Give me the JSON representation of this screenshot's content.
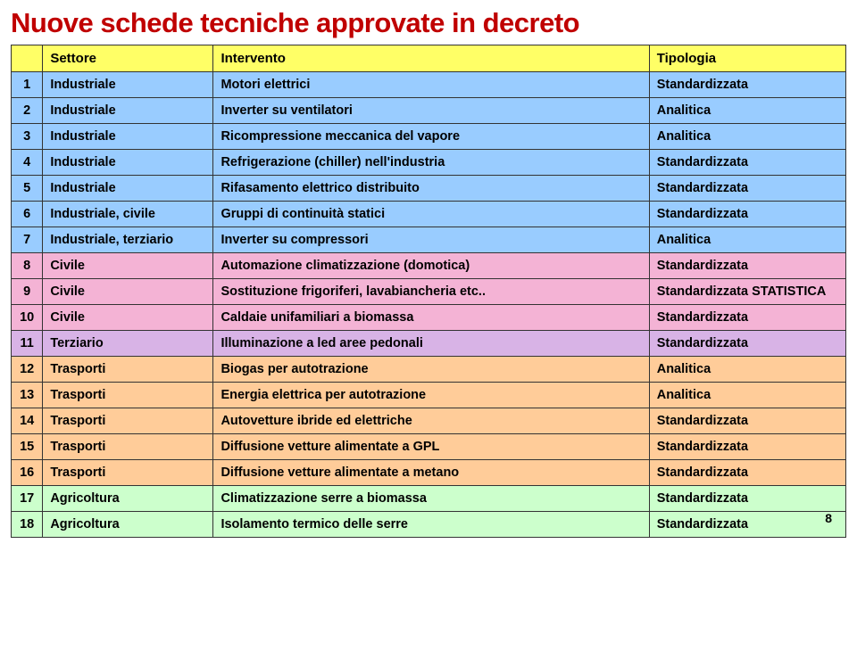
{
  "title": {
    "text": "Nuove schede tecniche approvate in decreto",
    "color": "#c00000"
  },
  "page_number": "8",
  "header": {
    "bg": "#ffff66",
    "num": "",
    "settore": "Settore",
    "intervento": "Intervento",
    "tipologia": "Tipologia"
  },
  "palette": {
    "yellow": "#ffff66",
    "blue": "#99ccff",
    "pink": "#f4b3d5",
    "purple": "#d8b3e6",
    "orange": "#ffcc99",
    "green": "#ccffcc"
  },
  "rows": [
    {
      "n": "1",
      "settore": "Industriale",
      "intervento": "Motori elettrici",
      "tipologia": "Standardizzata",
      "bg": "blue"
    },
    {
      "n": "2",
      "settore": "Industriale",
      "intervento": "Inverter su ventilatori",
      "tipologia": "Analitica",
      "bg": "blue"
    },
    {
      "n": "3",
      "settore": "Industriale",
      "intervento": "Ricompressione meccanica del vapore",
      "tipologia": "Analitica",
      "bg": "blue"
    },
    {
      "n": "4",
      "settore": "Industriale",
      "intervento": "Refrigerazione (chiller) nell'industria",
      "tipologia": "Standardizzata",
      "bg": "blue"
    },
    {
      "n": "5",
      "settore": "Industriale",
      "intervento": "Rifasamento elettrico distribuito",
      "tipologia": "Standardizzata",
      "bg": "blue"
    },
    {
      "n": "6",
      "settore": "Industriale, civile",
      "intervento": "Gruppi di continuità statici",
      "tipologia": "Standardizzata",
      "bg": "blue"
    },
    {
      "n": "7",
      "settore": "Industriale, terziario",
      "intervento": "Inverter su compressori",
      "tipologia": "Analitica",
      "bg": "blue"
    },
    {
      "n": "8",
      "settore": "Civile",
      "intervento": "Automazione climatizzazione (domotica)",
      "tipologia": "Standardizzata",
      "bg": "pink"
    },
    {
      "n": "9",
      "settore": "Civile",
      "intervento": "Sostituzione frigoriferi, lavabiancheria etc..",
      "tipologia": "Standardizzata STATISTICA",
      "bg": "pink"
    },
    {
      "n": "10",
      "settore": "Civile",
      "intervento": "Caldaie unifamiliari a biomassa",
      "tipologia": "Standardizzata",
      "bg": "pink"
    },
    {
      "n": "11",
      "settore": "Terziario",
      "intervento": "Illuminazione a led aree pedonali",
      "tipologia": "Standardizzata",
      "bg": "purple"
    },
    {
      "n": "12",
      "settore": "Trasporti",
      "intervento": "Biogas per autotrazione",
      "tipologia": "Analitica",
      "bg": "orange"
    },
    {
      "n": "13",
      "settore": "Trasporti",
      "intervento": "Energia elettrica per autotrazione",
      "tipologia": "Analitica",
      "bg": "orange"
    },
    {
      "n": "14",
      "settore": "Trasporti",
      "intervento": "Autovetture ibride ed elettriche",
      "tipologia": "Standardizzata",
      "bg": "orange"
    },
    {
      "n": "15",
      "settore": "Trasporti",
      "intervento": "Diffusione vetture alimentate a GPL",
      "tipologia": "Standardizzata",
      "bg": "orange"
    },
    {
      "n": "16",
      "settore": "Trasporti",
      "intervento": "Diffusione vetture alimentate a metano",
      "tipologia": "Standardizzata",
      "bg": "orange"
    },
    {
      "n": "17",
      "settore": "Agricoltura",
      "intervento": "Climatizzazione serre a biomassa",
      "tipologia": "Standardizzata",
      "bg": "green"
    },
    {
      "n": "18",
      "settore": "Agricoltura",
      "intervento": "Isolamento termico delle serre",
      "tipologia": "Standardizzata",
      "bg": "green"
    }
  ]
}
